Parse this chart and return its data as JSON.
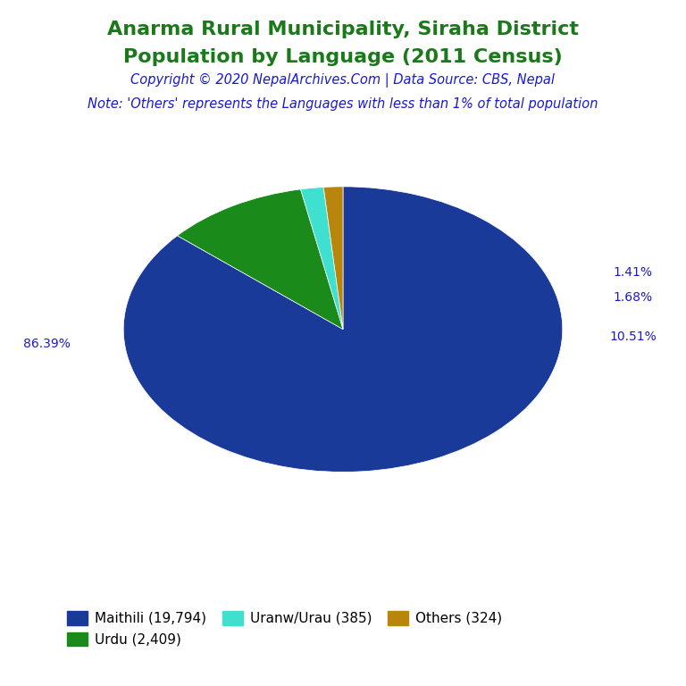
{
  "title_line1": "Anarma Rural Municipality, Siraha District",
  "title_line2": "Population by Language (2011 Census)",
  "title_color": "#1a7a1a",
  "copyright_text": "Copyright © 2020 NepalArchives.Com | Data Source: CBS, Nepal",
  "copyright_color": "#1a1acd",
  "note_text": "Note: 'Others' represents the Languages with less than 1% of total population",
  "note_color": "#1a1acd",
  "labels": [
    "Maithili (19,794)",
    "Urdu (2,409)",
    "Uranw/Urau (385)",
    "Others (324)"
  ],
  "values": [
    19794,
    2409,
    385,
    324
  ],
  "percentages": [
    "86.39%",
    "10.51%",
    "1.68%",
    "1.41%"
  ],
  "colors": [
    "#1a3a9a",
    "#1a8a1a",
    "#40e0d0",
    "#b8860b"
  ],
  "shadow_color": "#00003a",
  "startangle": 90,
  "label_color": "#1a1acd",
  "background_color": "#ffffff",
  "legend_ncol": 3
}
